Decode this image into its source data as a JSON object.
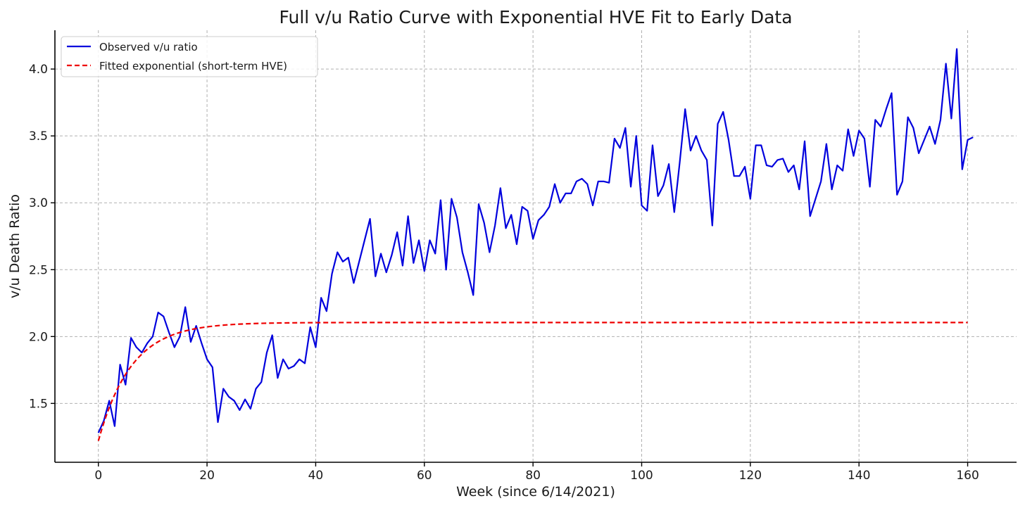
{
  "chart_data": {
    "type": "line",
    "title": "Full v/u Ratio Curve with Exponential HVE Fit to Early Data",
    "xlabel": "Week (since 6/14/2021)",
    "ylabel": "v/u Death Ratio",
    "xlim": [
      -8,
      169
    ],
    "ylim": [
      1.06,
      4.29
    ],
    "xticks": [
      0,
      20,
      40,
      60,
      80,
      100,
      120,
      140,
      160
    ],
    "xtick_labels": [
      "0",
      "20",
      "40",
      "60",
      "80",
      "100",
      "120",
      "140",
      "160"
    ],
    "yticks": [
      1.5,
      2.0,
      2.5,
      3.0,
      3.5,
      4.0
    ],
    "ytick_labels": [
      "1.5",
      "2.0",
      "2.5",
      "3.0",
      "3.5",
      "4.0"
    ],
    "grid": true,
    "legend": {
      "position": "top-left",
      "entries": [
        {
          "label": "Observed v/u ratio",
          "style": "solid",
          "color": "#0000dd"
        },
        {
          "label": "Fitted exponential (short-term HVE)",
          "style": "dashed",
          "color": "#ee0000"
        }
      ]
    },
    "series": [
      {
        "name": "Observed v/u ratio",
        "color": "#0000dd",
        "style": "solid",
        "x_start": 0,
        "values": [
          1.28,
          1.37,
          1.52,
          1.33,
          1.79,
          1.64,
          1.99,
          1.92,
          1.88,
          1.95,
          2.0,
          2.18,
          2.15,
          2.03,
          1.92,
          2.0,
          2.22,
          1.96,
          2.08,
          1.95,
          1.83,
          1.77,
          1.36,
          1.61,
          1.55,
          1.52,
          1.45,
          1.53,
          1.46,
          1.61,
          1.66,
          1.88,
          2.01,
          1.69,
          1.83,
          1.76,
          1.78,
          1.83,
          1.8,
          2.07,
          1.92,
          2.29,
          2.19,
          2.47,
          2.63,
          2.56,
          2.59,
          2.4,
          2.56,
          2.72,
          2.88,
          2.45,
          2.62,
          2.48,
          2.61,
          2.78,
          2.53,
          2.9,
          2.55,
          2.72,
          2.49,
          2.72,
          2.62,
          3.02,
          2.5,
          3.03,
          2.89,
          2.63,
          2.48,
          2.31,
          2.99,
          2.85,
          2.63,
          2.83,
          3.11,
          2.81,
          2.91,
          2.69,
          2.97,
          2.94,
          2.73,
          2.87,
          2.91,
          2.97,
          3.14,
          3.0,
          3.07,
          3.07,
          3.16,
          3.18,
          3.14,
          2.98,
          3.16,
          3.16,
          3.15,
          3.48,
          3.41,
          3.56,
          3.12,
          3.5,
          2.98,
          2.94,
          3.43,
          3.05,
          3.13,
          3.29,
          2.93,
          3.3,
          3.7,
          3.39,
          3.5,
          3.39,
          3.32,
          2.83,
          3.59,
          3.68,
          3.47,
          3.2,
          3.2,
          3.27,
          3.03,
          3.43,
          3.43,
          3.28,
          3.27,
          3.32,
          3.33,
          3.23,
          3.28,
          3.1,
          3.46,
          2.9,
          3.03,
          3.16,
          3.44,
          3.1,
          3.28,
          3.24,
          3.55,
          3.35,
          3.54,
          3.48,
          3.12,
          3.62,
          3.57,
          3.7,
          3.82,
          3.06,
          3.16,
          3.64,
          3.56,
          3.37,
          3.47,
          3.57,
          3.44,
          3.62,
          4.04,
          3.63,
          4.15,
          3.25,
          3.47,
          3.49
        ]
      },
      {
        "name": "Fitted exponential (short-term HVE)",
        "color": "#ee0000",
        "style": "dashed",
        "model": "y = a - (a - y0) * exp(-k * x)",
        "a": 2.105,
        "y0": 1.22,
        "k": 0.165,
        "x_range": [
          0,
          160
        ]
      }
    ]
  }
}
